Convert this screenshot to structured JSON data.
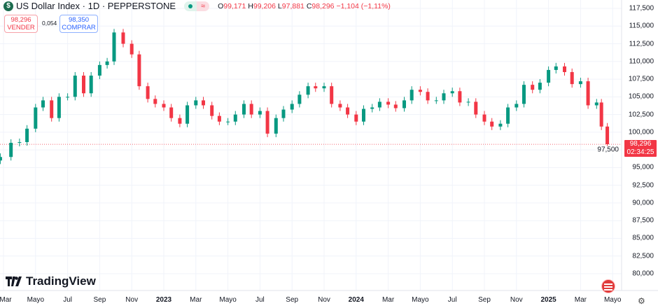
{
  "header": {
    "title": "US Dollar Index · 1D · PEPPERSTONE",
    "symbol_icon": "dollar-icon",
    "ohlc": {
      "o_label": "O",
      "o": "99,171",
      "h_label": "H",
      "h": "99,206",
      "l_label": "L",
      "l": "97,881",
      "c_label": "C",
      "c": "98,296",
      "change": "−1,104 (−1,11%)"
    }
  },
  "trade": {
    "sell_price": "98,296",
    "sell_label": "VENDER",
    "spread": "0,054",
    "buy_price": "98,350",
    "buy_label": "COMPRAR"
  },
  "current": {
    "price": "98,296",
    "countdown": "02:34:25",
    "value": 98.296
  },
  "branding": {
    "name": "TradingView"
  },
  "colors": {
    "up": "#089981",
    "down": "#f23645",
    "accent": "#2962ff"
  },
  "chart_data": {
    "type": "candlestick",
    "ylim": [
      80,
      117.5
    ],
    "y_ticks": [
      "117,500",
      "115,000",
      "112,500",
      "110,000",
      "107,500",
      "105,000",
      "102,500",
      "100,000",
      "97,500",
      "95,000",
      "92,500",
      "90,000",
      "87,500",
      "85,000",
      "82,500",
      "80,000"
    ],
    "y_tick_values": [
      117.5,
      115,
      112.5,
      110,
      107.5,
      105,
      102.5,
      100,
      97.5,
      95,
      92.5,
      90,
      87.5,
      85,
      82.5,
      80
    ],
    "x_ticks": [
      {
        "label": "Mar",
        "date": "2022-03-01"
      },
      {
        "label": "Mayo",
        "date": "2022-05-01"
      },
      {
        "label": "Jul",
        "date": "2022-07-01"
      },
      {
        "label": "Sep",
        "date": "2022-09-01"
      },
      {
        "label": "Nov",
        "date": "2022-11-01"
      },
      {
        "label": "2023",
        "date": "2023-01-01",
        "bold": true
      },
      {
        "label": "Mar",
        "date": "2023-03-01"
      },
      {
        "label": "Mayo",
        "date": "2023-05-01"
      },
      {
        "label": "Jul",
        "date": "2023-07-01"
      },
      {
        "label": "Sep",
        "date": "2023-09-01"
      },
      {
        "label": "Nov",
        "date": "2023-11-01"
      },
      {
        "label": "2024",
        "date": "2024-01-01",
        "bold": true
      },
      {
        "label": "Mar",
        "date": "2024-03-01"
      },
      {
        "label": "Mayo",
        "date": "2024-05-01"
      },
      {
        "label": "Jul",
        "date": "2024-07-01"
      },
      {
        "label": "Sep",
        "date": "2024-09-01"
      },
      {
        "label": "Nov",
        "date": "2024-11-01"
      },
      {
        "label": "2025",
        "date": "2025-01-01",
        "bold": true
      },
      {
        "label": "Mar",
        "date": "2025-03-01"
      },
      {
        "label": "Mayo",
        "date": "2025-05-01"
      }
    ],
    "grid": true,
    "series": [
      {
        "dates": [
          "2022-02-25",
          "2022-03-15",
          "2022-04-01",
          "2022-04-15",
          "2022-05-01",
          "2022-05-15",
          "2022-06-01",
          "2022-06-15",
          "2022-07-01",
          "2022-07-15",
          "2022-08-01",
          "2022-08-15",
          "2022-09-01",
          "2022-09-15",
          "2022-09-28",
          "2022-10-15",
          "2022-11-01",
          "2022-11-15",
          "2022-12-01",
          "2022-12-15",
          "2023-01-01",
          "2023-01-15",
          "2023-02-01",
          "2023-02-15",
          "2023-03-01",
          "2023-03-15",
          "2023-04-01",
          "2023-04-15",
          "2023-05-01",
          "2023-05-15",
          "2023-06-01",
          "2023-06-15",
          "2023-07-01",
          "2023-07-15",
          "2023-08-01",
          "2023-08-15",
          "2023-09-01",
          "2023-09-15",
          "2023-10-01",
          "2023-10-15",
          "2023-11-01",
          "2023-11-15",
          "2023-12-01",
          "2023-12-15",
          "2024-01-01",
          "2024-01-15",
          "2024-02-01",
          "2024-02-15",
          "2024-03-01",
          "2024-03-15",
          "2024-04-01",
          "2024-04-15",
          "2024-05-01",
          "2024-05-15",
          "2024-06-01",
          "2024-06-15",
          "2024-07-01",
          "2024-07-15",
          "2024-08-01",
          "2024-08-15",
          "2024-09-01",
          "2024-09-15",
          "2024-10-01",
          "2024-10-15",
          "2024-11-01",
          "2024-11-15",
          "2024-12-01",
          "2024-12-15",
          "2025-01-01",
          "2025-01-15",
          "2025-02-01",
          "2025-02-15",
          "2025-03-01",
          "2025-03-15",
          "2025-04-01",
          "2025-04-10",
          "2025-04-21"
        ],
        "close": [
          96.5,
          98.5,
          98.6,
          100.5,
          103.5,
          104.5,
          102.0,
          105.0,
          105.0,
          108.0,
          105.5,
          108.0,
          109.5,
          110.0,
          114.1,
          112.5,
          111.0,
          106.5,
          104.7,
          104.0,
          103.5,
          102.0,
          101.2,
          103.8,
          104.5,
          103.8,
          102.3,
          101.5,
          101.5,
          102.5,
          104.0,
          102.5,
          103.0,
          99.8,
          102.0,
          103.2,
          104.0,
          105.3,
          106.5,
          106.2,
          106.5,
          104.0,
          103.5,
          102.5,
          101.5,
          103.3,
          103.5,
          104.3,
          103.9,
          103.4,
          104.5,
          106.0,
          105.7,
          104.5,
          104.5,
          105.5,
          105.8,
          104.2,
          104.3,
          102.5,
          101.5,
          100.8,
          101.2,
          103.5,
          104.0,
          106.7,
          106.0,
          107.0,
          108.8,
          109.3,
          108.5,
          106.8,
          107.2,
          103.8,
          104.2,
          100.8,
          98.3
        ]
      }
    ]
  },
  "icons": {
    "settings": "gear-icon",
    "flag": "us-flag-icon",
    "market_status": "market-open-icon",
    "sessions": "wave-icon"
  }
}
